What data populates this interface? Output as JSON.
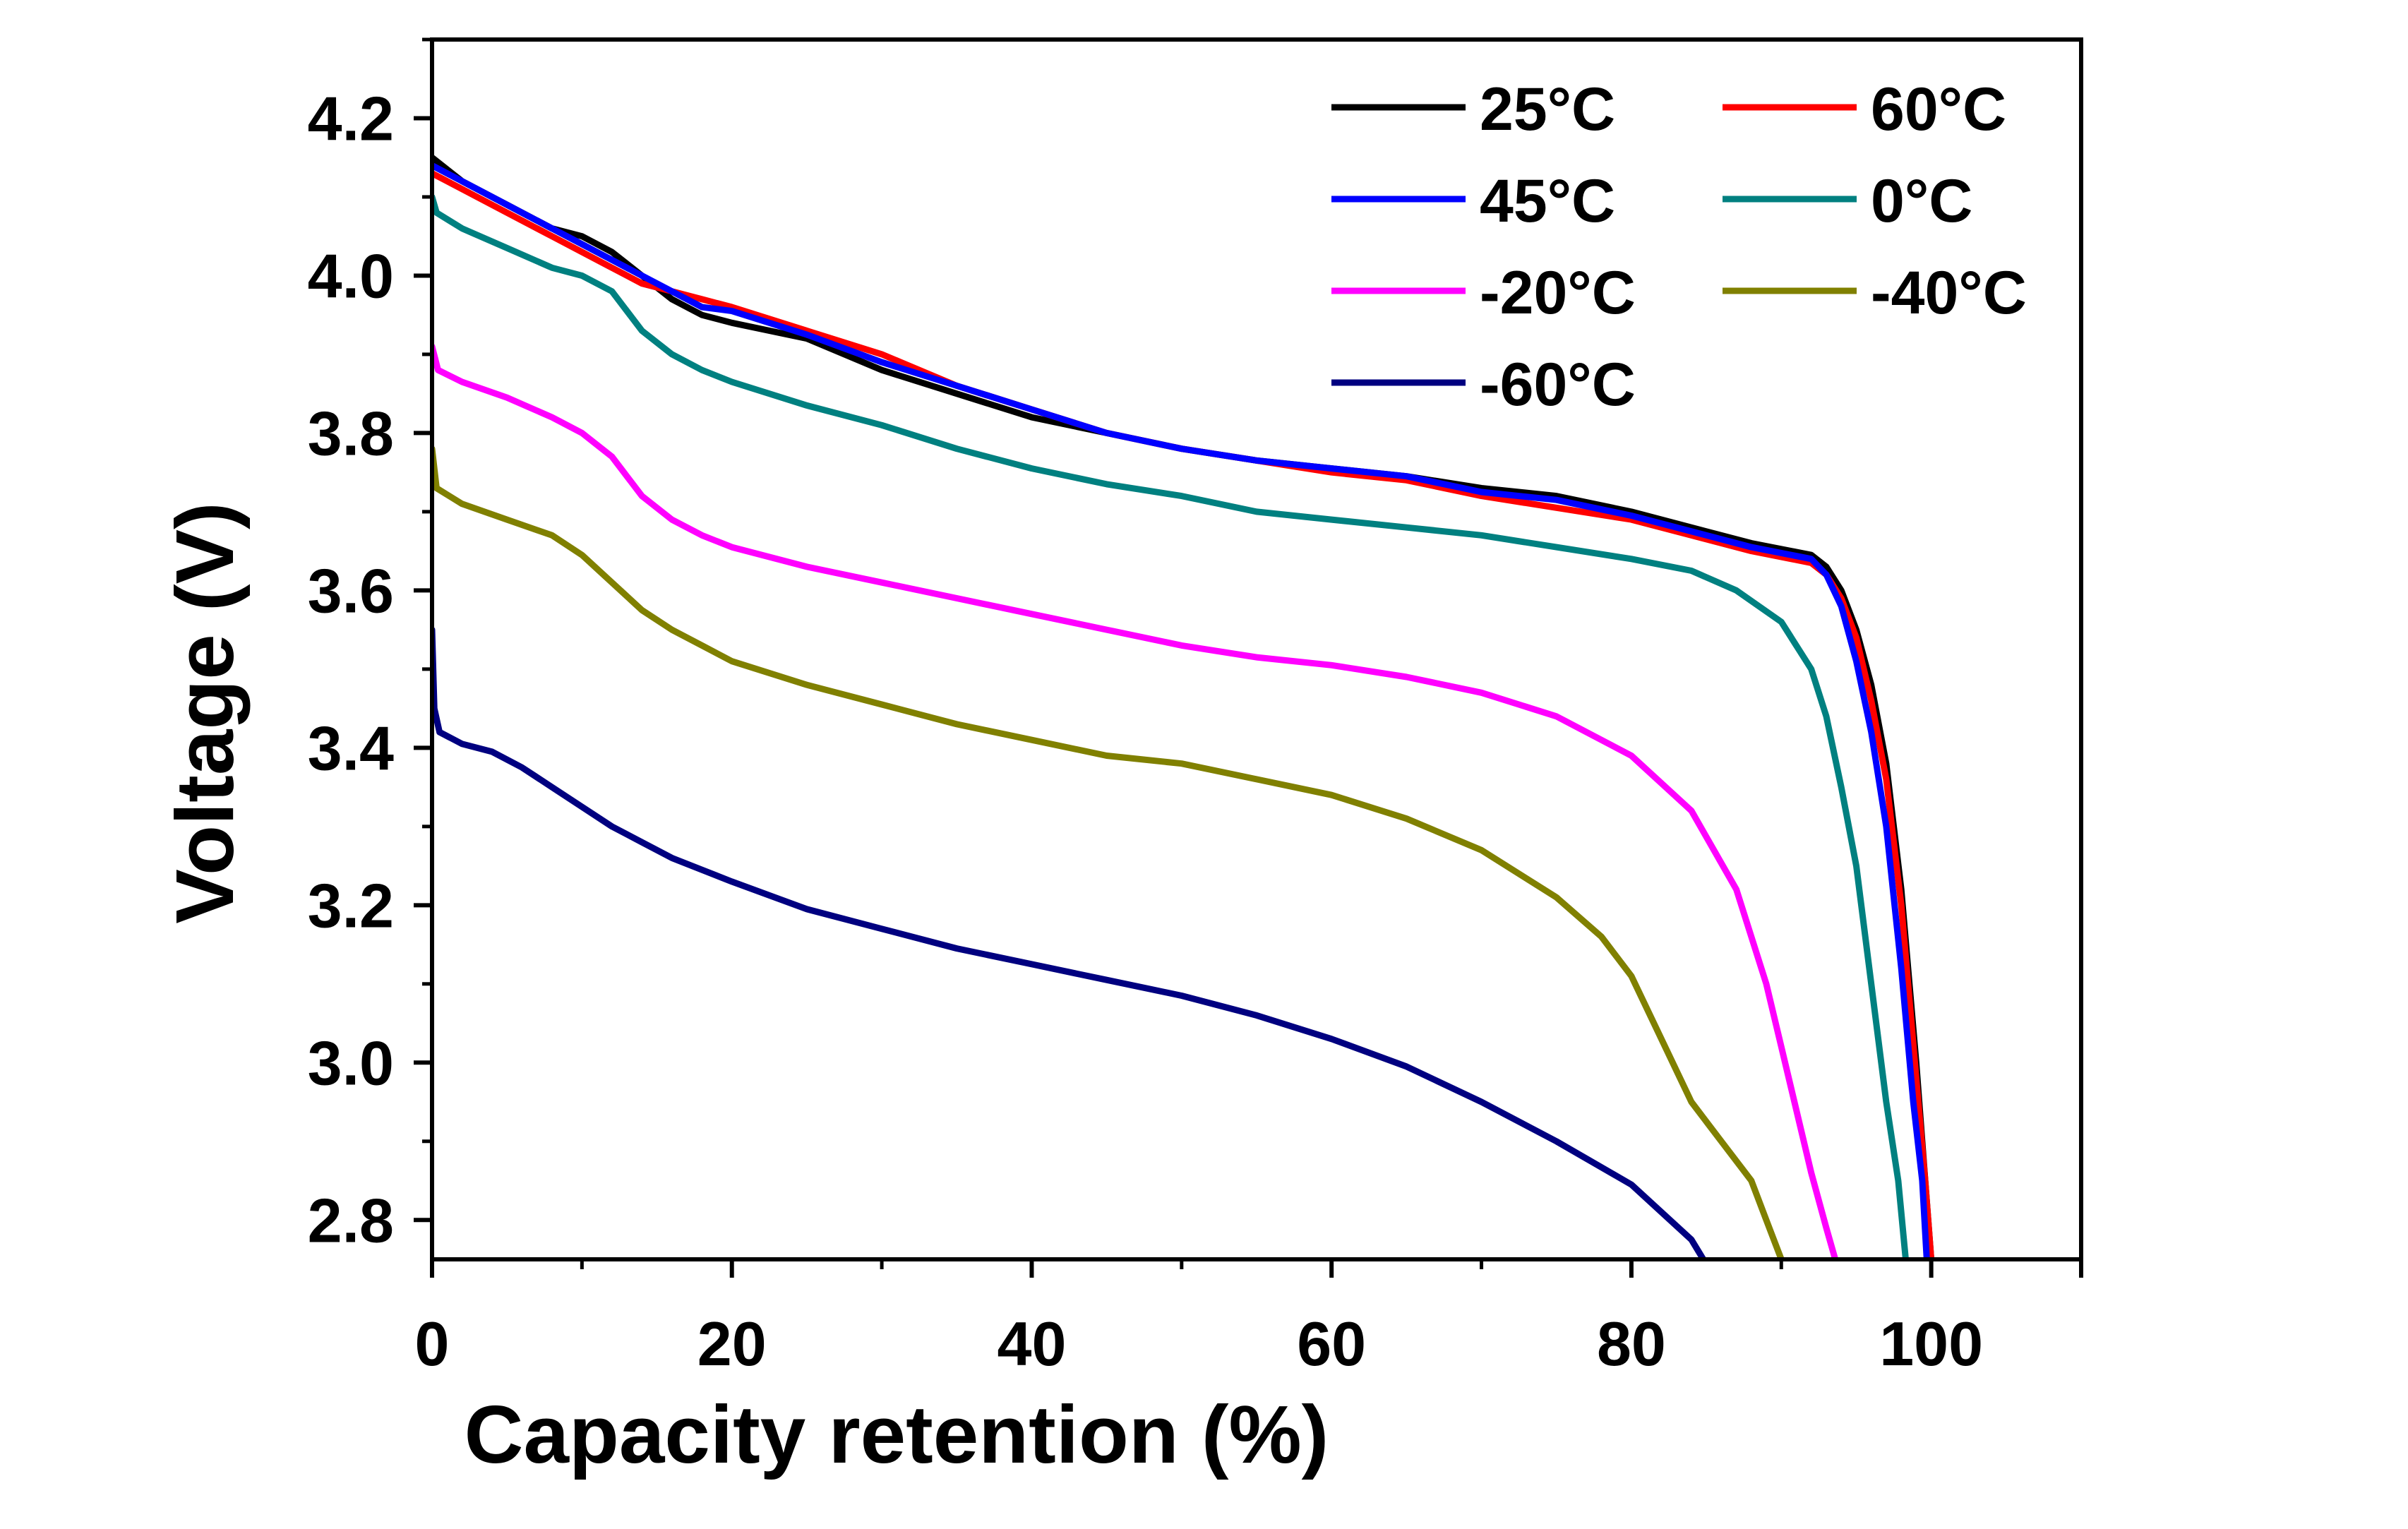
{
  "chart_data": {
    "type": "line",
    "title": "",
    "xlabel": "Capacity retention (%)",
    "ylabel": "Voltage (V)",
    "xlim": [
      0,
      110
    ],
    "ylim": [
      2.75,
      4.3
    ],
    "x_ticks": [
      0,
      20,
      40,
      60,
      80,
      100
    ],
    "x_tick_labels": [
      "0",
      "20",
      "40",
      "60",
      "80",
      "100"
    ],
    "y_ticks": [
      2.8,
      3.0,
      3.2,
      3.4,
      3.6,
      3.8,
      4.0,
      4.2
    ],
    "y_tick_labels": [
      "2.8",
      "3.0",
      "3.2",
      "3.4",
      "3.6",
      "3.8",
      "4.0",
      "4.2"
    ],
    "grid": false,
    "legend_position": "top-right",
    "series": [
      {
        "name": "25°C",
        "color": "#000000",
        "points": [
          [
            0,
            4.15
          ],
          [
            2,
            4.12
          ],
          [
            5,
            4.09
          ],
          [
            8,
            4.06
          ],
          [
            10,
            4.05
          ],
          [
            12,
            4.03
          ],
          [
            14,
            4.0
          ],
          [
            16,
            3.97
          ],
          [
            18,
            3.95
          ],
          [
            20,
            3.94
          ],
          [
            25,
            3.92
          ],
          [
            30,
            3.88
          ],
          [
            35,
            3.85
          ],
          [
            40,
            3.82
          ],
          [
            45,
            3.8
          ],
          [
            50,
            3.78
          ],
          [
            55,
            3.765
          ],
          [
            60,
            3.755
          ],
          [
            65,
            3.745
          ],
          [
            70,
            3.73
          ],
          [
            75,
            3.72
          ],
          [
            80,
            3.7
          ],
          [
            85,
            3.675
          ],
          [
            88,
            3.66
          ],
          [
            92,
            3.645
          ],
          [
            93,
            3.63
          ],
          [
            94,
            3.6
          ],
          [
            95,
            3.55
          ],
          [
            96,
            3.48
          ],
          [
            97,
            3.38
          ],
          [
            98,
            3.22
          ],
          [
            99,
            3.0
          ],
          [
            99.6,
            2.85
          ],
          [
            100,
            2.75
          ]
        ]
      },
      {
        "name": "60°C",
        "color": "#ff0000",
        "points": [
          [
            0,
            4.13
          ],
          [
            2,
            4.11
          ],
          [
            5,
            4.08
          ],
          [
            8,
            4.05
          ],
          [
            10,
            4.03
          ],
          [
            12,
            4.01
          ],
          [
            14,
            3.99
          ],
          [
            16,
            3.98
          ],
          [
            18,
            3.97
          ],
          [
            20,
            3.96
          ],
          [
            25,
            3.93
          ],
          [
            30,
            3.9
          ],
          [
            35,
            3.86
          ],
          [
            40,
            3.83
          ],
          [
            45,
            3.8
          ],
          [
            50,
            3.78
          ],
          [
            55,
            3.765
          ],
          [
            60,
            3.75
          ],
          [
            65,
            3.74
          ],
          [
            70,
            3.72
          ],
          [
            75,
            3.705
          ],
          [
            80,
            3.69
          ],
          [
            85,
            3.665
          ],
          [
            88,
            3.65
          ],
          [
            92,
            3.635
          ],
          [
            93,
            3.62
          ],
          [
            94,
            3.59
          ],
          [
            95,
            3.54
          ],
          [
            96,
            3.46
          ],
          [
            97,
            3.36
          ],
          [
            98,
            3.2
          ],
          [
            99,
            2.98
          ],
          [
            99.6,
            2.85
          ],
          [
            100,
            2.75
          ]
        ]
      },
      {
        "name": "45°C",
        "color": "#0000ff",
        "points": [
          [
            0,
            4.14
          ],
          [
            2,
            4.12
          ],
          [
            5,
            4.09
          ],
          [
            8,
            4.06
          ],
          [
            10,
            4.04
          ],
          [
            12,
            4.02
          ],
          [
            14,
            4.0
          ],
          [
            16,
            3.98
          ],
          [
            18,
            3.96
          ],
          [
            20,
            3.955
          ],
          [
            25,
            3.925
          ],
          [
            30,
            3.89
          ],
          [
            35,
            3.86
          ],
          [
            40,
            3.83
          ],
          [
            45,
            3.8
          ],
          [
            50,
            3.78
          ],
          [
            55,
            3.765
          ],
          [
            60,
            3.755
          ],
          [
            65,
            3.745
          ],
          [
            70,
            3.725
          ],
          [
            75,
            3.715
          ],
          [
            80,
            3.695
          ],
          [
            85,
            3.67
          ],
          [
            88,
            3.655
          ],
          [
            92,
            3.64
          ],
          [
            93,
            3.62
          ],
          [
            94,
            3.58
          ],
          [
            95,
            3.51
          ],
          [
            96,
            3.42
          ],
          [
            97,
            3.3
          ],
          [
            98,
            3.12
          ],
          [
            98.8,
            2.95
          ],
          [
            99.4,
            2.85
          ],
          [
            99.7,
            2.75
          ]
        ]
      },
      {
        "name": "0°C",
        "color": "#008080",
        "points": [
          [
            0,
            4.1
          ],
          [
            0.3,
            4.08
          ],
          [
            2,
            4.06
          ],
          [
            5,
            4.035
          ],
          [
            8,
            4.01
          ],
          [
            10,
            4.0
          ],
          [
            12,
            3.98
          ],
          [
            14,
            3.93
          ],
          [
            16,
            3.9
          ],
          [
            18,
            3.88
          ],
          [
            20,
            3.865
          ],
          [
            25,
            3.835
          ],
          [
            30,
            3.81
          ],
          [
            35,
            3.78
          ],
          [
            40,
            3.755
          ],
          [
            45,
            3.735
          ],
          [
            50,
            3.72
          ],
          [
            55,
            3.7
          ],
          [
            60,
            3.69
          ],
          [
            65,
            3.68
          ],
          [
            70,
            3.67
          ],
          [
            75,
            3.655
          ],
          [
            80,
            3.64
          ],
          [
            84,
            3.625
          ],
          [
            87,
            3.6
          ],
          [
            90,
            3.56
          ],
          [
            92,
            3.5
          ],
          [
            93,
            3.44
          ],
          [
            94,
            3.35
          ],
          [
            95,
            3.25
          ],
          [
            96,
            3.1
          ],
          [
            97,
            2.95
          ],
          [
            97.8,
            2.85
          ],
          [
            98.3,
            2.75
          ]
        ]
      },
      {
        "name": "-20°C",
        "color": "#ff00ff",
        "points": [
          [
            0,
            3.91
          ],
          [
            0.4,
            3.88
          ],
          [
            2,
            3.865
          ],
          [
            5,
            3.845
          ],
          [
            8,
            3.82
          ],
          [
            10,
            3.8
          ],
          [
            12,
            3.77
          ],
          [
            14,
            3.72
          ],
          [
            16,
            3.69
          ],
          [
            18,
            3.67
          ],
          [
            20,
            3.655
          ],
          [
            25,
            3.63
          ],
          [
            30,
            3.61
          ],
          [
            35,
            3.59
          ],
          [
            40,
            3.57
          ],
          [
            45,
            3.55
          ],
          [
            50,
            3.53
          ],
          [
            55,
            3.515
          ],
          [
            60,
            3.505
          ],
          [
            65,
            3.49
          ],
          [
            70,
            3.47
          ],
          [
            75,
            3.44
          ],
          [
            80,
            3.39
          ],
          [
            84,
            3.32
          ],
          [
            87,
            3.22
          ],
          [
            89,
            3.1
          ],
          [
            90,
            3.02
          ],
          [
            91,
            2.94
          ],
          [
            92,
            2.86
          ],
          [
            93,
            2.79
          ],
          [
            93.6,
            2.75
          ]
        ]
      },
      {
        "name": "-40°C",
        "color": "#808000",
        "points": [
          [
            0,
            3.78
          ],
          [
            0.3,
            3.73
          ],
          [
            2,
            3.71
          ],
          [
            5,
            3.69
          ],
          [
            8,
            3.67
          ],
          [
            10,
            3.645
          ],
          [
            12,
            3.61
          ],
          [
            14,
            3.575
          ],
          [
            16,
            3.55
          ],
          [
            18,
            3.53
          ],
          [
            20,
            3.51
          ],
          [
            25,
            3.48
          ],
          [
            30,
            3.455
          ],
          [
            35,
            3.43
          ],
          [
            40,
            3.41
          ],
          [
            45,
            3.39
          ],
          [
            50,
            3.38
          ],
          [
            55,
            3.36
          ],
          [
            60,
            3.34
          ],
          [
            65,
            3.31
          ],
          [
            70,
            3.27
          ],
          [
            75,
            3.21
          ],
          [
            78,
            3.16
          ],
          [
            80,
            3.11
          ],
          [
            82,
            3.03
          ],
          [
            84,
            2.95
          ],
          [
            86,
            2.9
          ],
          [
            88,
            2.85
          ],
          [
            89,
            2.8
          ],
          [
            90,
            2.75
          ]
        ]
      },
      {
        "name": "-60°C",
        "color": "#000080",
        "points": [
          [
            0,
            3.55
          ],
          [
            0.15,
            3.45
          ],
          [
            0.5,
            3.42
          ],
          [
            2,
            3.405
          ],
          [
            4,
            3.395
          ],
          [
            6,
            3.375
          ],
          [
            8,
            3.35
          ],
          [
            10,
            3.325
          ],
          [
            12,
            3.3
          ],
          [
            14,
            3.28
          ],
          [
            16,
            3.26
          ],
          [
            18,
            3.245
          ],
          [
            20,
            3.23
          ],
          [
            25,
            3.195
          ],
          [
            30,
            3.17
          ],
          [
            35,
            3.145
          ],
          [
            40,
            3.125
          ],
          [
            45,
            3.105
          ],
          [
            50,
            3.085
          ],
          [
            55,
            3.06
          ],
          [
            60,
            3.03
          ],
          [
            65,
            2.995
          ],
          [
            70,
            2.95
          ],
          [
            75,
            2.9
          ],
          [
            80,
            2.845
          ],
          [
            82,
            2.81
          ],
          [
            84,
            2.775
          ],
          [
            84.8,
            2.75
          ]
        ]
      }
    ]
  }
}
